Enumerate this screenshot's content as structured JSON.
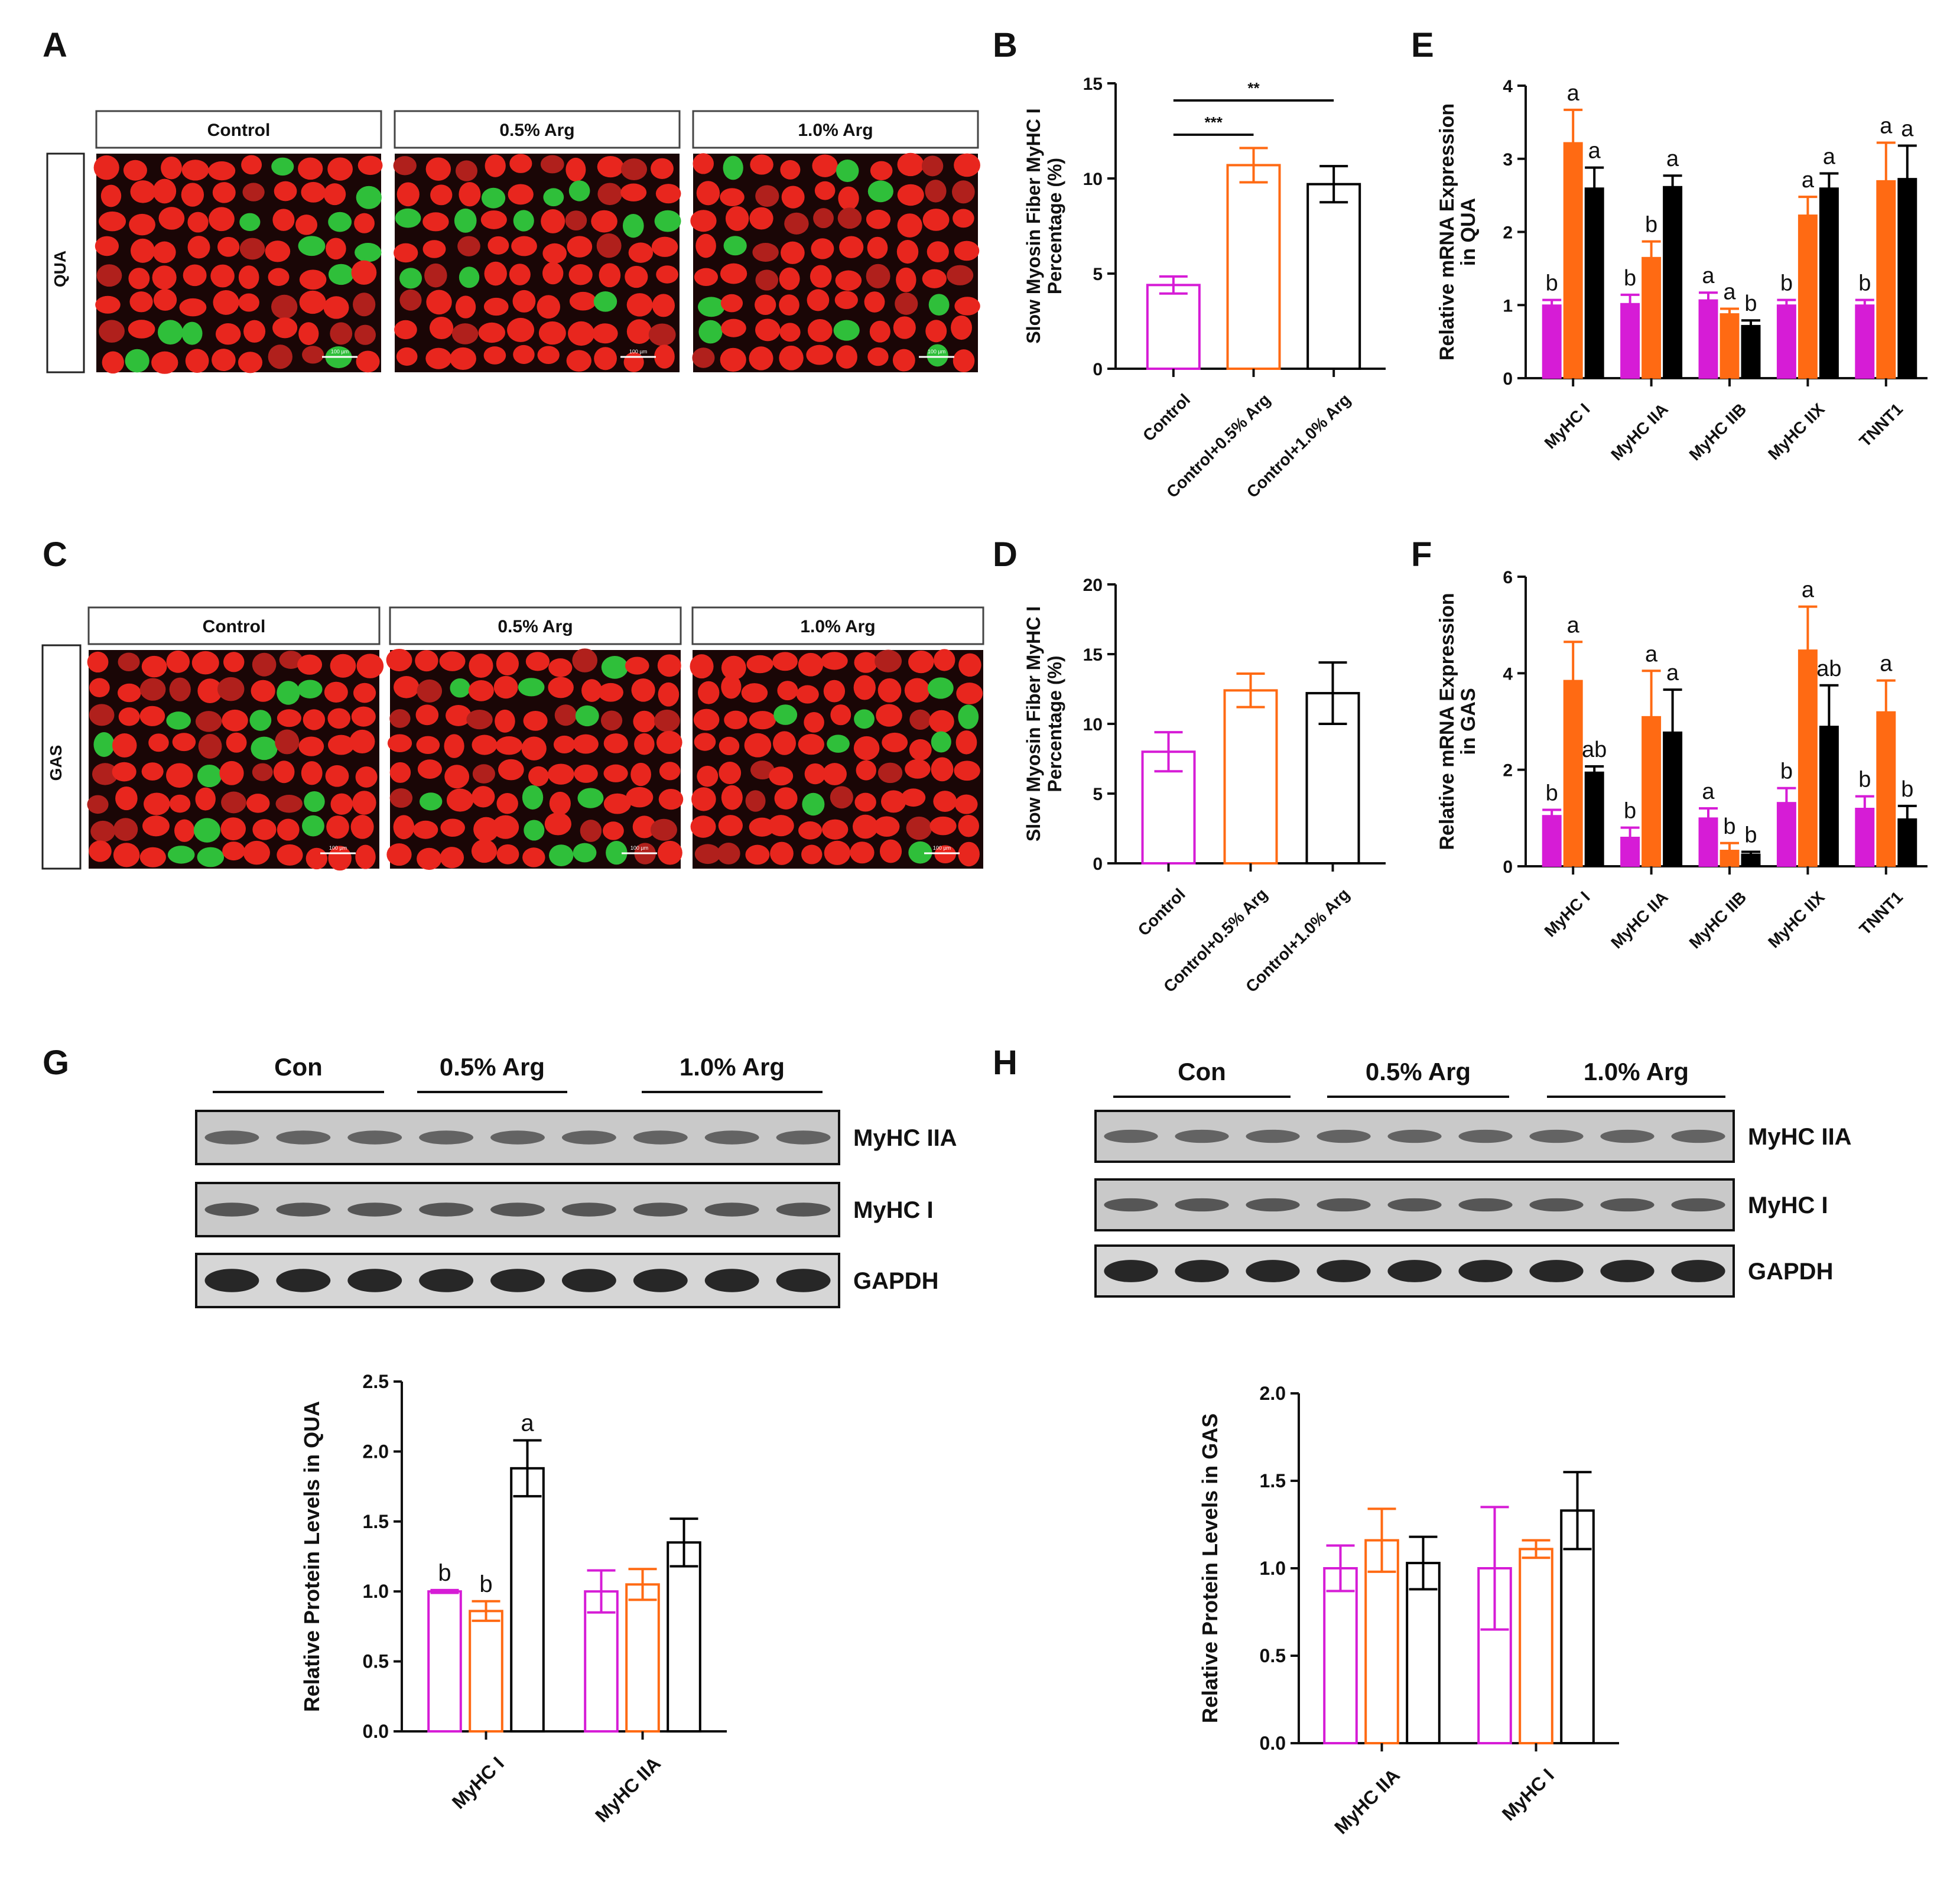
{
  "colors": {
    "control": "#d61cd6",
    "arg05": "#ff6a13",
    "arg10": "#000000",
    "text": "#111111"
  },
  "icons": [
    "scale-bar-icon"
  ],
  "panels": {
    "A": {
      "letter": "A",
      "tissue_label": "QUA",
      "headers": [
        "Control",
        "0.5% Arg",
        "1.0% Arg"
      ],
      "scale_bar_label": "100 µm"
    },
    "C": {
      "letter": "C",
      "tissue_label": "GAS",
      "headers": [
        "Control",
        "0.5% Arg",
        "1.0% Arg"
      ],
      "scale_bar_label": "100 µm"
    },
    "B": {
      "letter": "B",
      "chart_data": {
        "type": "bar",
        "style": "hollow",
        "categories": [
          "Control",
          "Control+0.5% Arg",
          "Control+1.0% Arg"
        ],
        "values": [
          4.4,
          10.7,
          9.7
        ],
        "errors": [
          0.45,
          0.9,
          0.95
        ],
        "ylabel_lines": [
          "Slow Myosin Fiber MyHC I",
          "Percentage (%)"
        ],
        "ylim": [
          0,
          15
        ],
        "yticks": [
          0,
          5,
          10,
          15
        ],
        "significance": [
          {
            "from": 0,
            "to": 1,
            "label": "***"
          },
          {
            "from": 0,
            "to": 2,
            "label": "**"
          }
        ]
      }
    },
    "D": {
      "letter": "D",
      "chart_data": {
        "type": "bar",
        "style": "hollow",
        "categories": [
          "Control",
          "Control+0.5% Arg",
          "Control+1.0% Arg"
        ],
        "values": [
          8.0,
          12.4,
          12.2
        ],
        "errors": [
          1.4,
          1.2,
          2.2
        ],
        "ylabel_lines": [
          "Slow Myosin Fiber MyHC I",
          "Percentage (%)"
        ],
        "ylim": [
          0,
          20
        ],
        "yticks": [
          0,
          5,
          10,
          15,
          20
        ]
      }
    },
    "E": {
      "letter": "E",
      "chart_data": {
        "type": "bar",
        "style": "filled",
        "categories": [
          "MyHC I",
          "MyHC IIA",
          "MyHC IIB",
          "MyHC IIX",
          "TNNT1"
        ],
        "series": [
          {
            "values": [
              1.0,
              1.02,
              1.07,
              1.0,
              1.0
            ],
            "errors": [
              0.07,
              0.12,
              0.1,
              0.07,
              0.07
            ],
            "letters": [
              "b",
              "b",
              "a",
              "b",
              "b"
            ]
          },
          {
            "values": [
              3.22,
              1.65,
              0.88,
              2.23,
              2.7
            ],
            "errors": [
              0.45,
              0.22,
              0.07,
              0.25,
              0.52
            ],
            "letters": [
              "a",
              "b",
              "a",
              "a",
              "a"
            ]
          },
          {
            "values": [
              2.6,
              2.62,
              0.72,
              2.6,
              2.73
            ],
            "errors": [
              0.28,
              0.15,
              0.07,
              0.2,
              0.45
            ],
            "letters": [
              "a",
              "a",
              "b",
              "a",
              "a"
            ]
          }
        ],
        "ylabel_lines": [
          "Relative mRNA Expression",
          "in QUA"
        ],
        "ylim": [
          0,
          4
        ],
        "yticks": [
          0,
          1,
          2,
          3,
          4
        ]
      }
    },
    "F": {
      "letter": "F",
      "chart_data": {
        "type": "bar",
        "style": "filled",
        "categories": [
          "MyHC I",
          "MyHC IIA",
          "MyHC IIB",
          "MyHC IIX",
          "TNNT1"
        ],
        "series": [
          {
            "values": [
              1.05,
              0.6,
              1.0,
              1.32,
              1.2
            ],
            "errors": [
              0.12,
              0.2,
              0.2,
              0.3,
              0.25
            ],
            "letters": [
              "b",
              "b",
              "a",
              "b",
              "b"
            ]
          },
          {
            "values": [
              3.85,
              3.1,
              0.33,
              4.48,
              3.2
            ],
            "errors": [
              0.8,
              0.95,
              0.15,
              0.9,
              0.65
            ],
            "letters": [
              "a",
              "a",
              "b",
              "a",
              "a"
            ]
          },
          {
            "values": [
              1.95,
              2.78,
              0.25,
              2.9,
              0.98
            ],
            "errors": [
              0.12,
              0.88,
              0.05,
              0.85,
              0.27
            ],
            "letters": [
              "ab",
              "a",
              "b",
              "ab",
              "b"
            ]
          }
        ],
        "ylabel_lines": [
          "Relative mRNA Expression",
          "in GAS"
        ],
        "ylim": [
          0,
          6
        ],
        "yticks": [
          0,
          2,
          4,
          6
        ]
      }
    },
    "G": {
      "letter": "G",
      "blot": {
        "groups": [
          "Con",
          "0.5% Arg",
          "1.0% Arg"
        ],
        "bands": [
          "MyHC IIA",
          "MyHC I",
          "GAPDH"
        ]
      },
      "chart_data": {
        "type": "bar",
        "style": "hollow",
        "categories": [
          "MyHC I",
          "MyHC IIA"
        ],
        "series": [
          {
            "values": [
              1.0,
              1.0
            ],
            "errors": [
              0.01,
              0.15
            ],
            "letters": [
              "b",
              ""
            ]
          },
          {
            "values": [
              0.86,
              1.05
            ],
            "errors": [
              0.07,
              0.11
            ],
            "letters": [
              "b",
              ""
            ]
          },
          {
            "values": [
              1.88,
              1.35
            ],
            "errors": [
              0.2,
              0.17
            ],
            "letters": [
              "a",
              ""
            ]
          }
        ],
        "ylabel_lines": [
          "Relative Protein Levels in QUA"
        ],
        "ylim": [
          0,
          2.5
        ],
        "yticks": [
          "0.0",
          "0.5",
          "1.0",
          "1.5",
          "2.0",
          "2.5"
        ]
      }
    },
    "H": {
      "letter": "H",
      "blot": {
        "groups": [
          "Con",
          "0.5% Arg",
          "1.0% Arg"
        ],
        "bands": [
          "MyHC IIA",
          "MyHC I",
          "GAPDH"
        ]
      },
      "chart_data": {
        "type": "bar",
        "style": "hollow",
        "categories": [
          "MyHC IIA",
          "MyHC I"
        ],
        "series": [
          {
            "values": [
              1.0,
              1.0
            ],
            "errors": [
              0.13,
              0.35
            ],
            "letters": [
              "",
              ""
            ]
          },
          {
            "values": [
              1.16,
              1.11
            ],
            "errors": [
              0.18,
              0.05
            ],
            "letters": [
              "",
              ""
            ]
          },
          {
            "values": [
              1.03,
              1.33
            ],
            "errors": [
              0.15,
              0.22
            ],
            "letters": [
              "",
              ""
            ]
          }
        ],
        "ylabel_lines": [
          "Relative Protein Levels in GAS"
        ],
        "ylim": [
          0,
          2.0
        ],
        "yticks": [
          "0.0",
          "0.5",
          "1.0",
          "1.5",
          "2.0"
        ]
      }
    }
  }
}
